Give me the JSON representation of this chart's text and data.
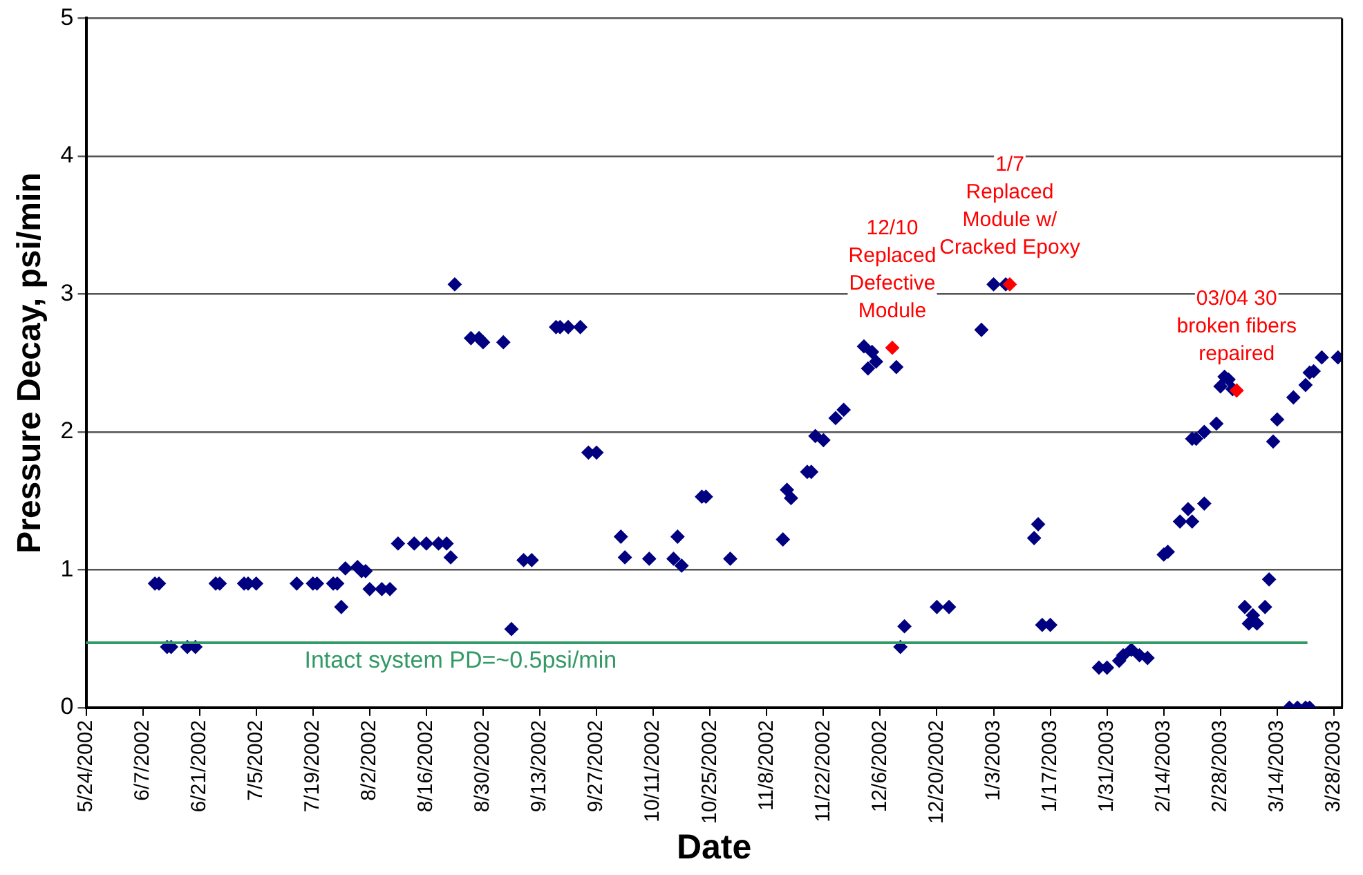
{
  "chart_data": {
    "type": "scatter",
    "xlabel": "Date",
    "ylabel": "Pressure Decay, psi/min",
    "xlim": [
      "2002-05-24",
      "2003-03-30"
    ],
    "ylim": [
      0,
      5
    ],
    "yticks": [
      0,
      1,
      2,
      3,
      4,
      5
    ],
    "xticks": [
      {
        "value": "2002-05-24",
        "label": "5/24/2002"
      },
      {
        "value": "2002-06-07",
        "label": "6/7/2002"
      },
      {
        "value": "2002-06-21",
        "label": "6/21/2002"
      },
      {
        "value": "2002-07-05",
        "label": "7/5/2002"
      },
      {
        "value": "2002-07-19",
        "label": "7/19/2002"
      },
      {
        "value": "2002-08-02",
        "label": "8/2/2002"
      },
      {
        "value": "2002-08-16",
        "label": "8/16/2002"
      },
      {
        "value": "2002-08-30",
        "label": "8/30/2002"
      },
      {
        "value": "2002-09-13",
        "label": "9/13/2002"
      },
      {
        "value": "2002-09-27",
        "label": "9/27/2002"
      },
      {
        "value": "2002-10-11",
        "label": "10/11/2002"
      },
      {
        "value": "2002-10-25",
        "label": "10/25/2002"
      },
      {
        "value": "2002-11-08",
        "label": "11/8/2002"
      },
      {
        "value": "2002-11-22",
        "label": "11/22/2002"
      },
      {
        "value": "2002-12-06",
        "label": "12/6/2002"
      },
      {
        "value": "2002-12-20",
        "label": "12/20/2002"
      },
      {
        "value": "2003-01-03",
        "label": "1/3/2003"
      },
      {
        "value": "2003-01-17",
        "label": "1/17/2003"
      },
      {
        "value": "2003-01-31",
        "label": "1/31/2003"
      },
      {
        "value": "2003-02-14",
        "label": "2/14/2003"
      },
      {
        "value": "2003-02-28",
        "label": "2/28/2003"
      },
      {
        "value": "2003-03-14",
        "label": "3/14/2003"
      },
      {
        "value": "2003-03-28",
        "label": "3/28/2003"
      }
    ],
    "grid": "y",
    "legend": false,
    "marker": "diamond",
    "series": [
      {
        "color": "#000080",
        "x": [
          "2002-06-10",
          "2002-06-11",
          "2002-06-13",
          "2002-06-14",
          "2002-06-18",
          "2002-06-20",
          "2002-06-25",
          "2002-06-26",
          "2002-07-02",
          "2002-07-03",
          "2002-07-05",
          "2002-07-15",
          "2002-07-19",
          "2002-07-20",
          "2002-07-24",
          "2002-07-25",
          "2002-07-26",
          "2002-07-27",
          "2002-07-30",
          "2002-07-31",
          "2002-08-01",
          "2002-08-02",
          "2002-08-05",
          "2002-08-07",
          "2002-08-09",
          "2002-08-13",
          "2002-08-16",
          "2002-08-19",
          "2002-08-21",
          "2002-08-22",
          "2002-08-23",
          "2002-08-27",
          "2002-08-29",
          "2002-08-30",
          "2002-09-04",
          "2002-09-06",
          "2002-09-09",
          "2002-09-11",
          "2002-09-17",
          "2002-09-18",
          "2002-09-20",
          "2002-09-23",
          "2002-09-25",
          "2002-09-27",
          "2002-10-03",
          "2002-10-04",
          "2002-10-10",
          "2002-10-16",
          "2002-10-17",
          "2002-10-18",
          "2002-10-23",
          "2002-10-24",
          "2002-10-30",
          "2002-11-12",
          "2002-11-13",
          "2002-11-14",
          "2002-11-18",
          "2002-11-19",
          "2002-11-20",
          "2002-11-22",
          "2002-11-25",
          "2002-11-27",
          "2002-12-02",
          "2002-12-03",
          "2002-12-04",
          "2002-12-05",
          "2002-12-10",
          "2002-12-11",
          "2002-12-12",
          "2002-12-20",
          "2002-12-23",
          "2002-12-31",
          "2003-01-03",
          "2003-01-06",
          "2003-01-13",
          "2003-01-14",
          "2003-01-15",
          "2003-01-17",
          "2003-01-29",
          "2003-01-31",
          "2003-02-03",
          "2003-02-04",
          "2003-02-06",
          "2003-02-08",
          "2003-02-10",
          "2003-02-14",
          "2003-02-15",
          "2003-02-18",
          "2003-02-20",
          "2003-02-21",
          "2003-02-24",
          "2003-02-21",
          "2003-02-22",
          "2003-02-24",
          "2003-02-27",
          "2003-02-28",
          "2003-03-01",
          "2003-03-02",
          "2003-03-03",
          "2003-03-06",
          "2003-03-07",
          "2003-03-08",
          "2003-03-09",
          "2003-03-11",
          "2003-03-12",
          "2003-03-13",
          "2003-03-14",
          "2003-03-17",
          "2003-03-19",
          "2003-03-21",
          "2003-03-22",
          "2003-03-18",
          "2003-03-21",
          "2003-03-22",
          "2003-03-23",
          "2003-03-25",
          "2003-03-29"
        ],
        "values": [
          0.9,
          0.9,
          0.44,
          0.44,
          0.44,
          0.44,
          0.9,
          0.9,
          0.9,
          0.9,
          0.9,
          0.9,
          0.9,
          0.9,
          0.9,
          0.9,
          0.73,
          1.01,
          1.02,
          0.99,
          0.99,
          0.86,
          0.86,
          0.86,
          1.19,
          1.19,
          1.19,
          1.19,
          1.19,
          1.09,
          3.07,
          2.68,
          2.68,
          2.65,
          2.65,
          0.57,
          1.07,
          1.07,
          2.76,
          2.76,
          2.76,
          2.76,
          1.85,
          1.85,
          1.24,
          1.09,
          1.08,
          1.08,
          1.24,
          1.03,
          1.53,
          1.53,
          1.08,
          1.22,
          1.58,
          1.52,
          1.71,
          1.71,
          1.97,
          1.94,
          2.1,
          2.16,
          2.62,
          2.46,
          2.58,
          2.51,
          2.47,
          0.44,
          0.59,
          0.73,
          0.73,
          2.74,
          3.07,
          3.07,
          1.23,
          1.33,
          0.6,
          0.6,
          0.29,
          0.29,
          0.34,
          0.38,
          0.42,
          0.38,
          0.36,
          1.11,
          1.13,
          1.35,
          1.44,
          1.35,
          1.48,
          1.95,
          1.95,
          2.0,
          2.06,
          2.33,
          2.4,
          2.38,
          2.31,
          0.73,
          0.61,
          0.67,
          0.61,
          0.73,
          0.93,
          1.93,
          2.09,
          0,
          0,
          0,
          0,
          2.25,
          2.34,
          2.43,
          2.44,
          2.54,
          2.54
        ]
      },
      {
        "color": "#ff0000",
        "x": [
          "2002-12-09",
          "2003-01-07",
          "2003-03-04"
        ],
        "values": [
          2.61,
          3.07,
          2.3
        ]
      }
    ],
    "ref_lines": [
      {
        "axis": "y",
        "value": 0.47,
        "label": "Intact system PD=~0.5psi/min",
        "color": "#339966"
      }
    ],
    "annotations": [
      {
        "text": "12/10\nReplaced\nDefective\nModule",
        "x": "2002-12-09",
        "y": 2.61
      },
      {
        "text": "1/7\nReplaced\nModule w/\nCracked Epoxy",
        "x": "2003-01-07",
        "y": 3.07
      },
      {
        "text": "03/04 30\nbroken fibers\nrepaired",
        "x": "2003-03-04",
        "y": 2.3
      }
    ]
  }
}
